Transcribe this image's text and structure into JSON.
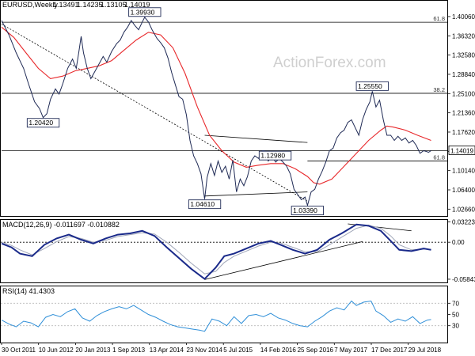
{
  "chart_data": {
    "type": "line",
    "title": "EURUSD,Weekly",
    "ohlc": [
      "1.13491",
      "1.14235",
      "1.13105",
      "1.14019"
    ],
    "watermark": "ActionForex.com",
    "x_labels": [
      "30 Oct 2011",
      "10 Jun 2012",
      "20 Jan 2013",
      "1 Sep 2013",
      "13 Apr 2014",
      "23 Nov 2014",
      "5 Jul 2015",
      "14 Feb 2016",
      "25 Sep 2016",
      "7 May 2017",
      "17 Dec 2017",
      "29 Jul 2018"
    ],
    "x_range": [
      0,
      363
    ],
    "price": {
      "ylim": [
        1.0133,
        1.4312
      ],
      "y_ticks": [
        "1.40060",
        "1.36320",
        "1.32580",
        "1.28840",
        "1.25100",
        "1.21360",
        "1.17620",
        "1.13880",
        "1.10140",
        "1.06400",
        "1.02660"
      ],
      "last_price": "1.14019",
      "close": [
        [
          0,
          1.393
        ],
        [
          6,
          1.365
        ],
        [
          12,
          1.33
        ],
        [
          18,
          1.3
        ],
        [
          22,
          1.27
        ],
        [
          27,
          1.235
        ],
        [
          31,
          1.222
        ],
        [
          34,
          1.2042
        ],
        [
          37,
          1.212
        ],
        [
          40,
          1.24
        ],
        [
          44,
          1.26
        ],
        [
          47,
          1.25
        ],
        [
          50,
          1.27
        ],
        [
          54,
          1.3
        ],
        [
          58,
          1.318
        ],
        [
          61,
          1.3
        ],
        [
          63,
          1.33
        ],
        [
          65,
          1.362
        ],
        [
          67,
          1.33
        ],
        [
          70,
          1.3
        ],
        [
          73,
          1.28
        ],
        [
          77,
          1.297
        ],
        [
          80,
          1.31
        ],
        [
          83,
          1.323
        ],
        [
          86,
          1.312
        ],
        [
          90,
          1.333
        ],
        [
          94,
          1.348
        ],
        [
          97,
          1.355
        ],
        [
          100,
          1.37
        ],
        [
          103,
          1.38
        ],
        [
          106,
          1.393
        ],
        [
          109,
          1.383
        ],
        [
          112,
          1.375
        ],
        [
          115,
          1.39
        ],
        [
          117,
          1.3993
        ],
        [
          120,
          1.39
        ],
        [
          123,
          1.375
        ],
        [
          127,
          1.358
        ],
        [
          130,
          1.35
        ],
        [
          133,
          1.34
        ],
        [
          136,
          1.32
        ],
        [
          139,
          1.292
        ],
        [
          142,
          1.268
        ],
        [
          145,
          1.245
        ],
        [
          148,
          1.24
        ],
        [
          151,
          1.21
        ],
        [
          154,
          1.16
        ],
        [
          157,
          1.13
        ],
        [
          160,
          1.115
        ],
        [
          163,
          1.095
        ],
        [
          166,
          1.0461
        ],
        [
          168,
          1.088
        ],
        [
          171,
          1.115
        ],
        [
          174,
          1.092
        ],
        [
          177,
          1.12
        ],
        [
          180,
          1.098
        ],
        [
          183,
          1.11
        ],
        [
          186,
          1.085
        ],
        [
          189,
          1.122
        ],
        [
          192,
          1.06
        ],
        [
          195,
          1.085
        ],
        [
          198,
          1.072
        ],
        [
          201,
          1.09
        ],
        [
          204,
          1.12
        ],
        [
          207,
          1.13
        ],
        [
          210,
          1.125
        ],
        [
          213,
          1.14
        ],
        [
          215,
          1.14
        ],
        [
          218,
          1.12
        ],
        [
          221,
          1.1298
        ],
        [
          224,
          1.118
        ],
        [
          227,
          1.125
        ],
        [
          230,
          1.118
        ],
        [
          233,
          1.11
        ],
        [
          236,
          1.095
        ],
        [
          239,
          1.065
        ],
        [
          242,
          1.055
        ],
        [
          245,
          1.045
        ],
        [
          248,
          1.05
        ],
        [
          250,
          1.0339
        ],
        [
          253,
          1.06
        ],
        [
          256,
          1.065
        ],
        [
          259,
          1.085
        ],
        [
          262,
          1.1
        ],
        [
          265,
          1.118
        ],
        [
          268,
          1.14
        ],
        [
          271,
          1.145
        ],
        [
          274,
          1.165
        ],
        [
          277,
          1.175
        ],
        [
          280,
          1.18
        ],
        [
          283,
          1.195
        ],
        [
          286,
          1.2
        ],
        [
          289,
          1.185
        ],
        [
          292,
          1.17
        ],
        [
          295,
          1.2
        ],
        [
          298,
          1.22
        ],
        [
          301,
          1.235
        ],
        [
          303,
          1.2555
        ],
        [
          306,
          1.225
        ],
        [
          309,
          1.238
        ],
        [
          312,
          1.2
        ],
        [
          315,
          1.17
        ],
        [
          318,
          1.17
        ],
        [
          321,
          1.16
        ],
        [
          324,
          1.168
        ],
        [
          327,
          1.16
        ],
        [
          330,
          1.165
        ],
        [
          333,
          1.155
        ],
        [
          336,
          1.16
        ],
        [
          339,
          1.15
        ],
        [
          342,
          1.135
        ],
        [
          345,
          1.14
        ],
        [
          349,
          1.137
        ],
        [
          351,
          1.14
        ]
      ],
      "sma": [
        [
          0,
          1.38
        ],
        [
          10,
          1.36
        ],
        [
          20,
          1.33
        ],
        [
          30,
          1.3
        ],
        [
          40,
          1.28
        ],
        [
          50,
          1.285
        ],
        [
          60,
          1.295
        ],
        [
          70,
          1.3
        ],
        [
          80,
          1.305
        ],
        [
          90,
          1.315
        ],
        [
          100,
          1.335
        ],
        [
          110,
          1.355
        ],
        [
          120,
          1.37
        ],
        [
          130,
          1.365
        ],
        [
          140,
          1.34
        ],
        [
          150,
          1.29
        ],
        [
          160,
          1.225
        ],
        [
          170,
          1.17
        ],
        [
          180,
          1.14
        ],
        [
          190,
          1.118
        ],
        [
          200,
          1.108
        ],
        [
          210,
          1.112
        ],
        [
          220,
          1.115
        ],
        [
          230,
          1.115
        ],
        [
          240,
          1.105
        ],
        [
          250,
          1.09
        ],
        [
          255,
          1.078
        ],
        [
          260,
          1.075
        ],
        [
          270,
          1.085
        ],
        [
          280,
          1.11
        ],
        [
          290,
          1.135
        ],
        [
          300,
          1.16
        ],
        [
          310,
          1.18
        ],
        [
          315,
          1.188
        ],
        [
          320,
          1.186
        ],
        [
          330,
          1.18
        ],
        [
          340,
          1.17
        ],
        [
          351,
          1.16
        ]
      ],
      "trendlines": [
        [
          [
            0,
            1.386
          ],
          [
            250,
            1.042
          ]
        ],
        [
          [
            166,
            1.052
          ],
          [
            250,
            1.06
          ]
        ],
        [
          [
            166,
            1.17
          ],
          [
            250,
            1.156
          ]
        ]
      ],
      "horizontal_levels": [
        {
          "y": 1.3895,
          "x_start": 0,
          "label": "61.8"
        },
        {
          "y": 1.2515,
          "x_start": 0,
          "label": "38.2"
        },
        {
          "y": 1.12,
          "x_start": 250,
          "label": "61.8"
        },
        {
          "y": 1.14019,
          "x_start": 0,
          "label": ""
        }
      ],
      "annotations": [
        {
          "text": "1.39930",
          "x": 117,
          "y": 1.3993
        },
        {
          "text": "1.20420",
          "x": 34,
          "y": 1.2042
        },
        {
          "text": "1.12980",
          "x": 221,
          "y": 1.1298
        },
        {
          "text": "1.04610",
          "x": 166,
          "y": 1.0461
        },
        {
          "text": "1.03390",
          "x": 250,
          "y": 1.0339
        },
        {
          "text": "1.25550",
          "x": 303,
          "y": 1.2555
        }
      ]
    },
    "macd": {
      "label": "MACD(12,26,9) -0.011697 -0.010882",
      "ylim": [
        -0.0635,
        0.0352
      ],
      "y_ticks": [
        "0.032235",
        "0.00",
        "-0.058434"
      ],
      "main": [
        [
          0,
          -0.002
        ],
        [
          8,
          -0.008
        ],
        [
          15,
          -0.018
        ],
        [
          25,
          -0.022
        ],
        [
          35,
          -0.004
        ],
        [
          45,
          0.006
        ],
        [
          55,
          0.012
        ],
        [
          65,
          0.004
        ],
        [
          75,
          -0.002
        ],
        [
          85,
          0.006
        ],
        [
          95,
          0.012
        ],
        [
          105,
          0.014
        ],
        [
          115,
          0.018
        ],
        [
          125,
          0.01
        ],
        [
          135,
          -0.008
        ],
        [
          145,
          -0.025
        ],
        [
          155,
          -0.042
        ],
        [
          166,
          -0.058
        ],
        [
          175,
          -0.04
        ],
        [
          182,
          -0.022
        ],
        [
          190,
          -0.018
        ],
        [
          200,
          -0.01
        ],
        [
          210,
          -0.002
        ],
        [
          220,
          0.002
        ],
        [
          228,
          -0.004
        ],
        [
          238,
          -0.012
        ],
        [
          248,
          -0.018
        ],
        [
          258,
          -0.012
        ],
        [
          268,
          0.004
        ],
        [
          278,
          0.014
        ],
        [
          290,
          0.028
        ],
        [
          300,
          0.026
        ],
        [
          310,
          0.018
        ],
        [
          318,
          0.002
        ],
        [
          325,
          -0.012
        ],
        [
          335,
          -0.014
        ],
        [
          345,
          -0.01
        ],
        [
          351,
          -0.012
        ]
      ],
      "signal": [
        [
          0,
          0.0
        ],
        [
          8,
          -0.005
        ],
        [
          15,
          -0.012
        ],
        [
          25,
          -0.02
        ],
        [
          35,
          -0.01
        ],
        [
          45,
          0.001
        ],
        [
          55,
          0.009
        ],
        [
          65,
          0.006
        ],
        [
          75,
          0.0
        ],
        [
          85,
          0.003
        ],
        [
          95,
          0.009
        ],
        [
          105,
          0.012
        ],
        [
          115,
          0.015
        ],
        [
          125,
          0.013
        ],
        [
          135,
          0.0
        ],
        [
          145,
          -0.016
        ],
        [
          155,
          -0.033
        ],
        [
          166,
          -0.05
        ],
        [
          175,
          -0.046
        ],
        [
          182,
          -0.032
        ],
        [
          190,
          -0.022
        ],
        [
          200,
          -0.014
        ],
        [
          210,
          -0.006
        ],
        [
          220,
          0.0
        ],
        [
          228,
          -0.001
        ],
        [
          238,
          -0.008
        ],
        [
          248,
          -0.015
        ],
        [
          258,
          -0.015
        ],
        [
          268,
          -0.004
        ],
        [
          278,
          0.008
        ],
        [
          290,
          0.022
        ],
        [
          300,
          0.027
        ],
        [
          310,
          0.022
        ],
        [
          318,
          0.01
        ],
        [
          325,
          -0.004
        ],
        [
          335,
          -0.012
        ],
        [
          345,
          -0.011
        ],
        [
          351,
          -0.011
        ]
      ],
      "trendlines": [
        [
          [
            166,
            -0.059
          ],
          [
            295,
            0.001
          ]
        ],
        [
          [
            283,
            0.029
          ],
          [
            335,
            0.018
          ]
        ]
      ],
      "zero_level": 0.0
    },
    "rsi": {
      "label": "RSI(14) 41.4303",
      "ylim": [
        0,
        100
      ],
      "y_ticks": [
        "70",
        "50",
        "30"
      ],
      "levels": [
        70,
        30
      ],
      "values": [
        [
          0,
          40
        ],
        [
          6,
          33
        ],
        [
          12,
          28
        ],
        [
          18,
          38
        ],
        [
          24,
          35
        ],
        [
          30,
          28
        ],
        [
          36,
          45
        ],
        [
          42,
          50
        ],
        [
          48,
          46
        ],
        [
          54,
          55
        ],
        [
          60,
          60
        ],
        [
          66,
          44
        ],
        [
          72,
          38
        ],
        [
          78,
          48
        ],
        [
          84,
          55
        ],
        [
          90,
          60
        ],
        [
          96,
          64
        ],
        [
          102,
          60
        ],
        [
          108,
          66
        ],
        [
          114,
          58
        ],
        [
          120,
          50
        ],
        [
          126,
          45
        ],
        [
          132,
          38
        ],
        [
          138,
          32
        ],
        [
          144,
          28
        ],
        [
          150,
          26
        ],
        [
          156,
          24
        ],
        [
          162,
          22
        ],
        [
          166,
          20
        ],
        [
          172,
          42
        ],
        [
          178,
          38
        ],
        [
          184,
          30
        ],
        [
          190,
          46
        ],
        [
          196,
          34
        ],
        [
          202,
          48
        ],
        [
          208,
          50
        ],
        [
          214,
          46
        ],
        [
          220,
          52
        ],
        [
          226,
          44
        ],
        [
          232,
          40
        ],
        [
          238,
          34
        ],
        [
          244,
          30
        ],
        [
          250,
          28
        ],
        [
          256,
          38
        ],
        [
          262,
          46
        ],
        [
          268,
          56
        ],
        [
          274,
          62
        ],
        [
          280,
          58
        ],
        [
          286,
          74
        ],
        [
          290,
          66
        ],
        [
          296,
          72
        ],
        [
          302,
          74
        ],
        [
          306,
          56
        ],
        [
          312,
          48
        ],
        [
          318,
          36
        ],
        [
          324,
          42
        ],
        [
          330,
          38
        ],
        [
          336,
          46
        ],
        [
          342,
          34
        ],
        [
          348,
          40
        ],
        [
          351,
          41
        ]
      ]
    }
  }
}
